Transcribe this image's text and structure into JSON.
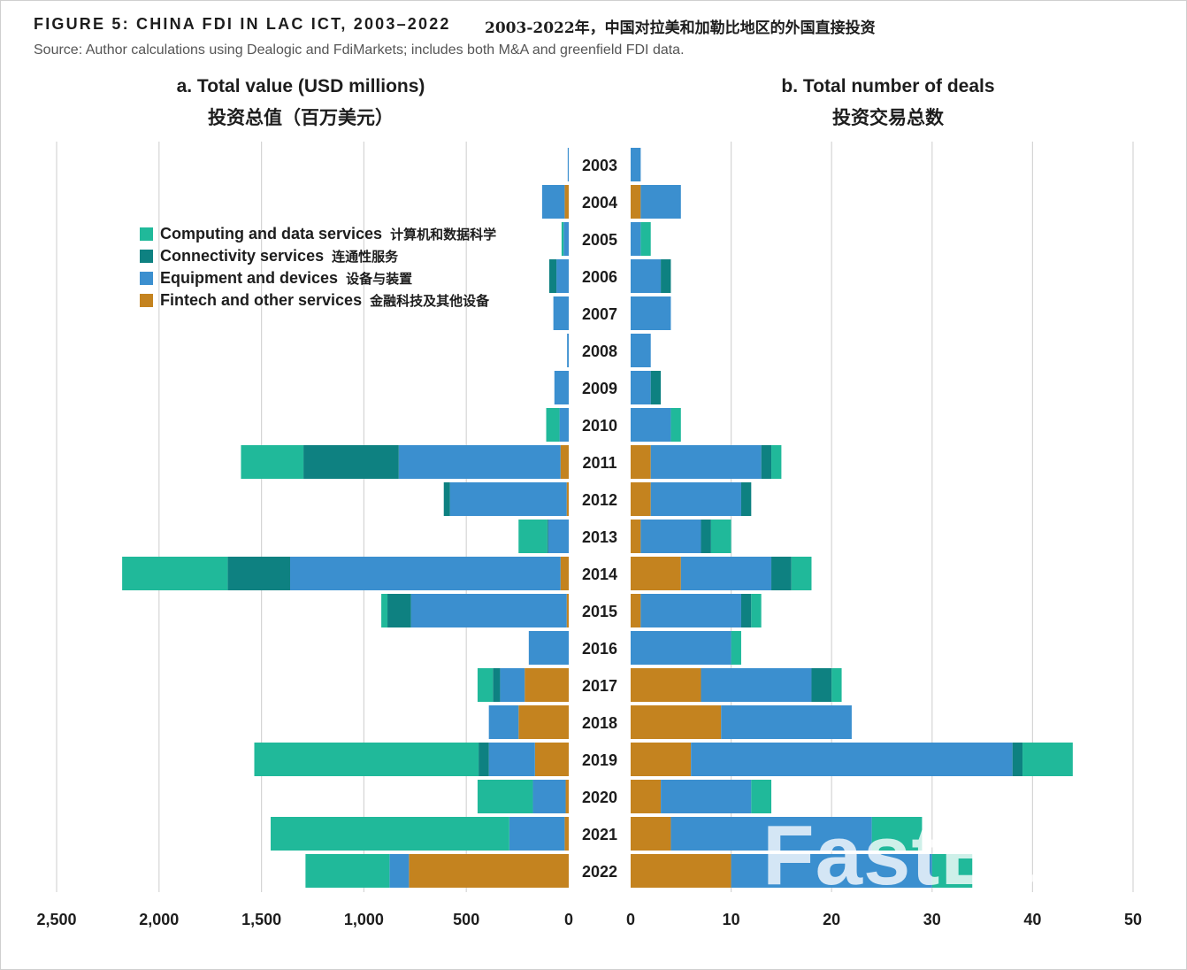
{
  "figure": {
    "title": "FIGURE 5: CHINA FDI IN LAC ICT, 2003–2022",
    "title_cn": "2003-2022年，中国对拉美和加勒比地区的外国直接投资",
    "source": "Source: Author calculations using Dealogic and FdiMarkets; includes both M&A and greenfield FDI data."
  },
  "panels": {
    "a": {
      "title": "a. Total value (USD millions)",
      "subtitle": "投资总值（百万美元）"
    },
    "b": {
      "title": "b. Total number of deals",
      "subtitle": "投资交易总数"
    }
  },
  "legend": [
    {
      "label": "Computing and data services",
      "label_cn": "计算机和数据科学",
      "color": "#20b99a"
    },
    {
      "label": "Connectivity services",
      "label_cn": "连通性服务",
      "color": "#0e8181"
    },
    {
      "label": "Equipment and devices",
      "label_cn": "设备与装置",
      "color": "#3b8fcf"
    },
    {
      "label": "Fintech and other services",
      "label_cn": "金融科技及其他设备",
      "color": "#c4831f"
    }
  ],
  "watermark": "FastBull",
  "chart_data": [
    {
      "type": "bar",
      "orientation": "horizontal",
      "direction": "leftward",
      "stacked": true,
      "title": "a. Total value (USD millions)",
      "categories": [
        "2003",
        "2004",
        "2005",
        "2006",
        "2007",
        "2008",
        "2009",
        "2010",
        "2011",
        "2012",
        "2013",
        "2014",
        "2015",
        "2016",
        "2017",
        "2018",
        "2019",
        "2020",
        "2021",
        "2022"
      ],
      "series": [
        {
          "name": "Fintech and other services",
          "color": "#c4831f",
          "values": [
            0,
            20,
            0,
            0,
            0,
            0,
            0,
            0,
            40,
            10,
            0,
            40,
            10,
            0,
            215,
            245,
            165,
            15,
            20,
            780
          ]
        },
        {
          "name": "Equipment and devices",
          "color": "#3b8fcf",
          "values": [
            5,
            110,
            25,
            60,
            75,
            8,
            70,
            45,
            790,
            570,
            100,
            1320,
            760,
            195,
            120,
            145,
            225,
            160,
            270,
            95
          ]
        },
        {
          "name": "Connectivity services",
          "color": "#0e8181",
          "values": [
            0,
            0,
            0,
            35,
            0,
            0,
            0,
            0,
            465,
            30,
            5,
            305,
            115,
            0,
            35,
            0,
            50,
            0,
            0,
            0
          ]
        },
        {
          "name": "Computing and data services",
          "color": "#20b99a",
          "values": [
            0,
            0,
            10,
            0,
            0,
            0,
            0,
            65,
            305,
            0,
            140,
            515,
            30,
            0,
            75,
            0,
            1095,
            270,
            1165,
            410
          ]
        }
      ],
      "xlim": [
        0,
        2500
      ],
      "xticks": [
        "2,500",
        "2,000",
        "1,500",
        "1,000",
        "500",
        "0"
      ],
      "grid": true
    },
    {
      "type": "bar",
      "orientation": "horizontal",
      "direction": "rightward",
      "stacked": true,
      "title": "b. Total number of deals",
      "categories": [
        "2003",
        "2004",
        "2005",
        "2006",
        "2007",
        "2008",
        "2009",
        "2010",
        "2011",
        "2012",
        "2013",
        "2014",
        "2015",
        "2016",
        "2017",
        "2018",
        "2019",
        "2020",
        "2021",
        "2022"
      ],
      "series": [
        {
          "name": "Fintech and other services",
          "color": "#c4831f",
          "values": [
            0,
            1,
            0,
            0,
            0,
            0,
            0,
            0,
            2,
            2,
            1,
            5,
            1,
            0,
            7,
            9,
            6,
            3,
            4,
            10
          ]
        },
        {
          "name": "Equipment and devices",
          "color": "#3b8fcf",
          "values": [
            1,
            4,
            1,
            3,
            4,
            2,
            2,
            4,
            11,
            9,
            6,
            9,
            10,
            10,
            11,
            13,
            32,
            9,
            20,
            20
          ]
        },
        {
          "name": "Connectivity services",
          "color": "#0e8181",
          "values": [
            0,
            0,
            0,
            1,
            0,
            0,
            1,
            0,
            1,
            1,
            1,
            2,
            1,
            0,
            2,
            0,
            1,
            0,
            0,
            0
          ]
        },
        {
          "name": "Computing and data services",
          "color": "#20b99a",
          "values": [
            0,
            0,
            1,
            0,
            0,
            0,
            0,
            1,
            1,
            0,
            2,
            2,
            1,
            1,
            1,
            0,
            5,
            2,
            5,
            4
          ]
        }
      ],
      "xlim": [
        0,
        50
      ],
      "xticks": [
        "0",
        "10",
        "20",
        "30",
        "40",
        "50"
      ],
      "grid": true
    }
  ]
}
